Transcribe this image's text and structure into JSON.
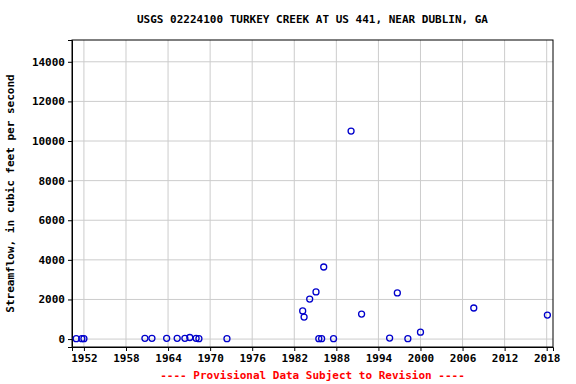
{
  "chart_data": {
    "type": "scatter",
    "title": "USGS 02224100 TURKEY CREEK AT US 441, NEAR DUBLIN, GA",
    "y_label": "Streamflow, in cubic feet per second",
    "annotation": "---- Provisional Data Subject to Revision ----",
    "x": [
      1950.9,
      1951.7,
      1952.0,
      1960.7,
      1961.7,
      1963.8,
      1965.3,
      1966.4,
      1967.1,
      1968.0,
      1968.4,
      1972.4,
      1983.2,
      1983.4,
      1984.2,
      1985.1,
      1985.5,
      1985.9,
      1986.2,
      1987.6,
      1990.1,
      1991.6,
      1995.6,
      1996.7,
      1998.2,
      2000.0,
      2007.6,
      2018.1
    ],
    "values": [
      20,
      20,
      20,
      40,
      40,
      40,
      40,
      40,
      80,
      40,
      20,
      20,
      1420,
      1110,
      2020,
      2380,
      20,
      20,
      3640,
      20,
      10500,
      1260,
      50,
      2330,
      20,
      350,
      1570,
      1210
    ],
    "color": "#0000cc",
    "marker": "circle-open",
    "xlim": [
      1950.3,
      2018.9
    ],
    "xticks": [
      1952,
      1958,
      1964,
      1970,
      1976,
      1982,
      1988,
      1994,
      2000,
      2006,
      2012,
      2018
    ],
    "ylim": [
      -400,
      15100
    ],
    "yticks": [
      0,
      2000,
      4000,
      6000,
      8000,
      10000,
      12000,
      14000
    ],
    "grid": true
  }
}
